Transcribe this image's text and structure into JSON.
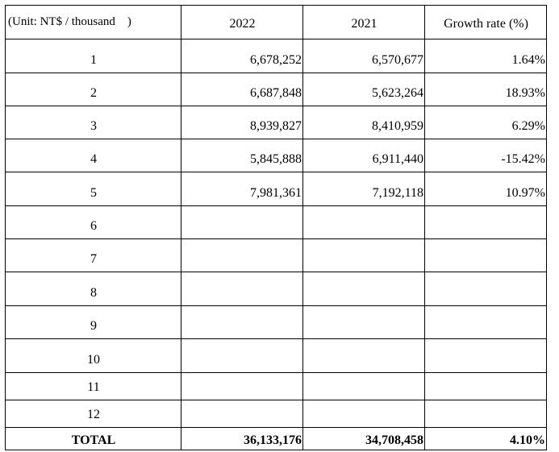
{
  "header": {
    "unit_label": "(Unit: NT$ / thousand    )",
    "year_current": "2022",
    "year_previous": "2021",
    "growth_label": "Growth rate (%)"
  },
  "rows": [
    {
      "month": "1",
      "y2022": "6,678,252",
      "y2021": "6,570,677",
      "growth": "1.64%"
    },
    {
      "month": "2",
      "y2022": "6,687,848",
      "y2021": "5,623,264",
      "growth": "18.93%"
    },
    {
      "month": "3",
      "y2022": "8,939,827",
      "y2021": "8,410,959",
      "growth": "6.29%"
    },
    {
      "month": "4",
      "y2022": "5,845,888",
      "y2021": "6,911,440",
      "growth": "-15.42%"
    },
    {
      "month": "5",
      "y2022": "7,981,361",
      "y2021": "7,192,118",
      "growth": "10.97%"
    },
    {
      "month": "6",
      "y2022": "",
      "y2021": "",
      "growth": ""
    },
    {
      "month": "7",
      "y2022": "",
      "y2021": "",
      "growth": ""
    },
    {
      "month": "8",
      "y2022": "",
      "y2021": "",
      "growth": ""
    },
    {
      "month": "9",
      "y2022": "",
      "y2021": "",
      "growth": ""
    },
    {
      "month": "10",
      "y2022": "",
      "y2021": "",
      "growth": ""
    },
    {
      "month": "11",
      "y2022": "",
      "y2021": "",
      "growth": ""
    },
    {
      "month": "12",
      "y2022": "",
      "y2021": "",
      "growth": ""
    }
  ],
  "total": {
    "label": "TOTAL",
    "y2022": "36,133,176",
    "y2021": "34,708,458",
    "growth": "4.10%"
  }
}
